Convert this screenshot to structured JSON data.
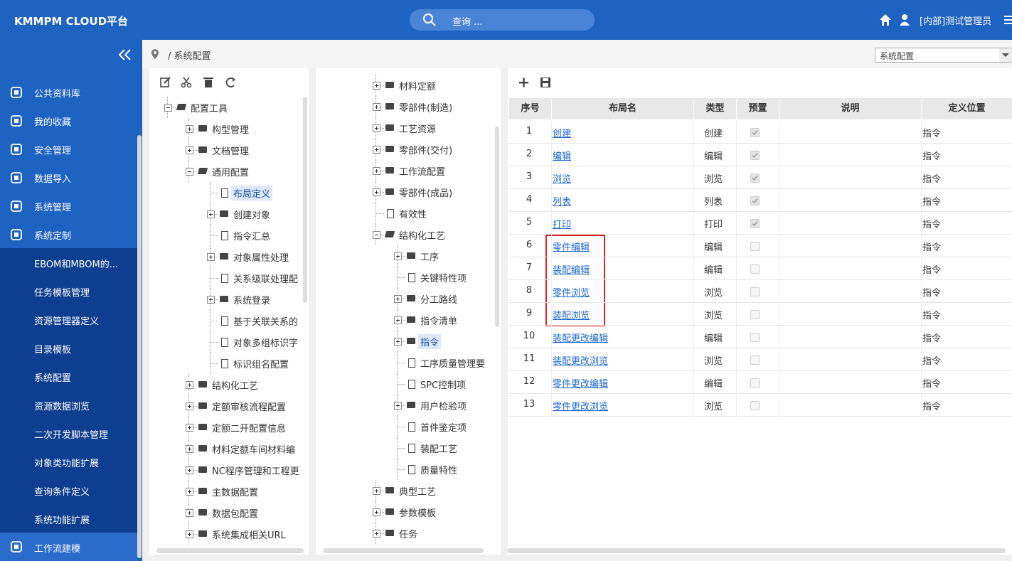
{
  "header": {
    "title": "KMMPM CLOUD平台",
    "search_placeholder": "查询 ...",
    "user": "[内部]测试管理员"
  },
  "sidebar": {
    "items": [
      "公共资料库",
      "我的收藏",
      "安全管理",
      "数据导入",
      "系统管理",
      "系统定制"
    ],
    "sub_items": [
      "EBOM和MBOM的...",
      "任务模板管理",
      "资源管理器定义",
      "目录模板",
      "系统配置",
      "资源数据浏览",
      "二次开发脚本管理",
      "对象类功能扩展",
      "查询条件定义",
      "系统功能扩展"
    ],
    "bottom_item": "工作流建模"
  },
  "breadcrumb": "/ 系统配置",
  "selector": "系统配置",
  "tree_left": [
    {
      "level": 0,
      "kind": "open",
      "label": "配置工具"
    },
    {
      "level": 1,
      "kind": "folder",
      "label": "构型管理"
    },
    {
      "level": 1,
      "kind": "folder",
      "label": "文档管理"
    },
    {
      "level": 1,
      "kind": "open",
      "label": "通用配置"
    },
    {
      "level": 2,
      "kind": "file",
      "label": "布局定义",
      "selected": true
    },
    {
      "level": 2,
      "kind": "folder",
      "label": "创建对象"
    },
    {
      "level": 2,
      "kind": "file",
      "label": "指令汇总"
    },
    {
      "level": 2,
      "kind": "folder",
      "label": "对象属性处理"
    },
    {
      "level": 2,
      "kind": "file",
      "label": "关系级联处理配"
    },
    {
      "level": 2,
      "kind": "folder",
      "label": "系统登录"
    },
    {
      "level": 2,
      "kind": "file",
      "label": "基于关联关系的"
    },
    {
      "level": 2,
      "kind": "file",
      "label": "对象多组标识字"
    },
    {
      "level": 2,
      "kind": "file",
      "label": "标识组名配置"
    },
    {
      "level": 1,
      "kind": "folder",
      "label": "结构化工艺"
    },
    {
      "level": 1,
      "kind": "folder",
      "label": "定额审核流程配置"
    },
    {
      "level": 1,
      "kind": "folder",
      "label": "定额二开配置信息"
    },
    {
      "level": 1,
      "kind": "folder",
      "label": "材料定额车间材料编"
    },
    {
      "level": 1,
      "kind": "folder",
      "label": "NC程序管理和工程更"
    },
    {
      "level": 1,
      "kind": "folder",
      "label": "主数据配置"
    },
    {
      "level": 1,
      "kind": "folder",
      "label": "数据包配置"
    },
    {
      "level": 1,
      "kind": "folder",
      "label": "系统集成相关URL"
    }
  ],
  "tree_right": [
    {
      "level": 1,
      "kind": "folder",
      "label": "材料定额"
    },
    {
      "level": 1,
      "kind": "folder",
      "label": "零部件(制造)"
    },
    {
      "level": 1,
      "kind": "folder",
      "label": "工艺资源"
    },
    {
      "level": 1,
      "kind": "folder",
      "label": "零部件(交付)"
    },
    {
      "level": 1,
      "kind": "folder",
      "label": "工作流配置"
    },
    {
      "level": 1,
      "kind": "folder",
      "label": "零部件(成品)"
    },
    {
      "level": 1,
      "kind": "file",
      "label": "有效性"
    },
    {
      "level": 1,
      "kind": "open",
      "label": "结构化工艺"
    },
    {
      "level": 2,
      "kind": "folder",
      "label": "工序"
    },
    {
      "level": 2,
      "kind": "file",
      "label": "关键特性项"
    },
    {
      "level": 2,
      "kind": "folder",
      "label": "分工路线"
    },
    {
      "level": 2,
      "kind": "folder",
      "label": "指令清单"
    },
    {
      "level": 2,
      "kind": "folder",
      "label": "指令",
      "selected": true
    },
    {
      "level": 2,
      "kind": "file",
      "label": "工序质量管理要"
    },
    {
      "level": 2,
      "kind": "file",
      "label": "SPC控制项"
    },
    {
      "level": 2,
      "kind": "folder",
      "label": "用户检验项"
    },
    {
      "level": 2,
      "kind": "file",
      "label": "首件鉴定项"
    },
    {
      "level": 2,
      "kind": "file",
      "label": "装配工艺"
    },
    {
      "level": 2,
      "kind": "file",
      "label": "质量特性"
    },
    {
      "level": 1,
      "kind": "folder",
      "label": "典型工艺"
    },
    {
      "level": 1,
      "kind": "folder",
      "label": "参数模板"
    },
    {
      "level": 1,
      "kind": "folder",
      "label": "任务"
    }
  ],
  "table": {
    "headers": [
      "序号",
      "布局名",
      "类型",
      "预置",
      "说明",
      "定义位置"
    ],
    "rows": [
      [
        1,
        "创建",
        "创建",
        true,
        "",
        "指令"
      ],
      [
        2,
        "编辑",
        "编辑",
        true,
        "",
        "指令"
      ],
      [
        3,
        "浏览",
        "浏览",
        true,
        "",
        "指令"
      ],
      [
        4,
        "列表",
        "列表",
        true,
        "",
        "指令"
      ],
      [
        5,
        "打印",
        "打印",
        true,
        "",
        "指令"
      ],
      [
        6,
        "零件编辑",
        "编辑",
        false,
        "",
        "指令"
      ],
      [
        7,
        "装配编辑",
        "编辑",
        false,
        "",
        "指令"
      ],
      [
        8,
        "零件浏览",
        "浏览",
        false,
        "",
        "指令"
      ],
      [
        9,
        "装配浏览",
        "浏览",
        false,
        "",
        "指令"
      ],
      [
        10,
        "装配更改编辑",
        "编辑",
        false,
        "",
        "指令"
      ],
      [
        11,
        "装配更改浏览",
        "浏览",
        false,
        "",
        "指令"
      ],
      [
        12,
        "零件更改编辑",
        "编辑",
        false,
        "",
        "指令"
      ],
      [
        13,
        "零件更改浏览",
        "浏览",
        false,
        "",
        "指令"
      ]
    ]
  }
}
